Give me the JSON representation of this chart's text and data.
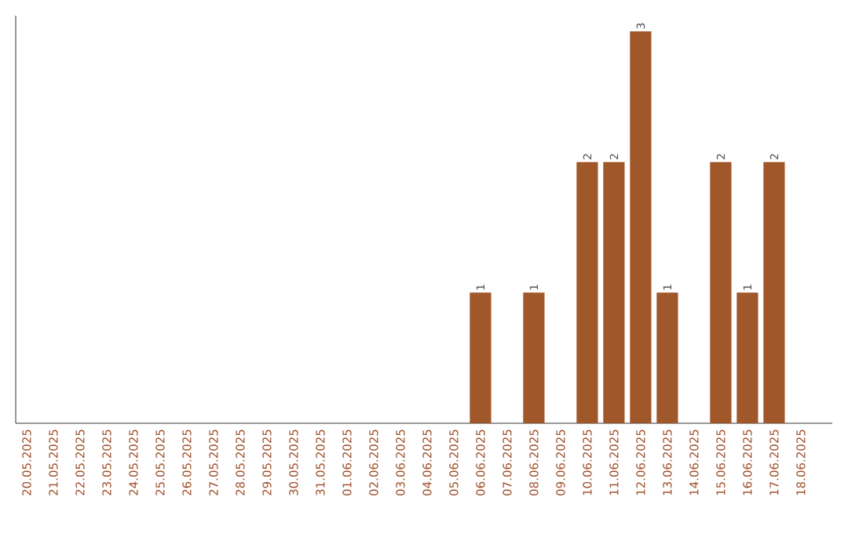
{
  "chart_data": {
    "type": "bar",
    "categories": [
      "20.05.2025",
      "21.05.2025",
      "22.05.2025",
      "23.05.2025",
      "24.05.2025",
      "25.05.2025",
      "26.05.2025",
      "27.05.2025",
      "28.05.2025",
      "29.05.2025",
      "30.05.2025",
      "31.05.2025",
      "01.06.2025",
      "02.06.2025",
      "03.06.2025",
      "04.06.2025",
      "05.06.2025",
      "06.06.2025",
      "07.06.2025",
      "08.06.2025",
      "09.06.2025",
      "10.06.2025",
      "11.06.2025",
      "12.06.2025",
      "13.06.2025",
      "14.06.2025",
      "15.06.2025",
      "16.06.2025",
      "17.06.2025",
      "18.06.2025"
    ],
    "values": [
      null,
      null,
      null,
      null,
      null,
      null,
      null,
      null,
      null,
      null,
      null,
      null,
      null,
      null,
      null,
      null,
      null,
      1,
      null,
      1,
      null,
      2,
      2,
      3,
      1,
      null,
      2,
      1,
      2,
      null
    ],
    "data_labels": true,
    "color": "#a0572a"
  }
}
